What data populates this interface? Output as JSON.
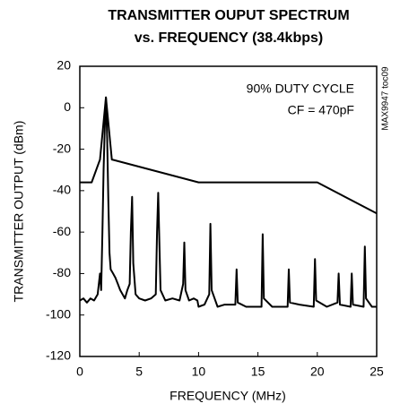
{
  "chart_data": {
    "type": "line",
    "title": [
      "TRANSMITTER OUPUT SPECTRUM",
      "vs. FREQUENCY (38.4kbps)"
    ],
    "x_label": "FREQUENCY (MHz)",
    "y_label": "TRANSMITTER OUTPUT (dBm)",
    "annotations": [
      "90% DUTY CYCLE",
      "CF = 470pF",
      "MAX9947 toc09"
    ],
    "xlim": [
      0,
      25
    ],
    "ylim": [
      -120,
      20
    ],
    "xticks": [
      0,
      5,
      10,
      15,
      20,
      25
    ],
    "yticks": [
      20,
      0,
      -20,
      -40,
      -60,
      -80,
      -100,
      -120
    ],
    "grid": false,
    "series": [
      {
        "color": "#000000",
        "x": [
          0,
          1,
          1.7,
          2.2,
          2.7,
          10,
          20,
          25
        ],
        "values": [
          -36,
          -36,
          -25,
          5,
          -25,
          -36,
          -36,
          -51
        ]
      },
      {
        "color": "#000000",
        "x": [
          0,
          0.3,
          0.6,
          0.9,
          1.2,
          1.5,
          1.7,
          1.8,
          1.9,
          2.0,
          2.1,
          2.2,
          2.3,
          2.4,
          2.5,
          2.6,
          2.8,
          3.0,
          3.2,
          3.4,
          3.6,
          3.8,
          4.0,
          4.2,
          4.3,
          4.4,
          4.5,
          4.7,
          5.0,
          5.5,
          6.0,
          6.4,
          6.5,
          6.6,
          6.7,
          6.8,
          7.2,
          7.8,
          8.4,
          8.7,
          8.8,
          8.9,
          9.2,
          9.6,
          9.9,
          10.0,
          10.5,
          10.9,
          11.0,
          11.1,
          11.6,
          12.2,
          13.1,
          13.2,
          13.3,
          14,
          15.3,
          15.4,
          15.5,
          16.2,
          17.5,
          17.6,
          17.7,
          18.5,
          19.7,
          19.8,
          19.9,
          20.8,
          21.7,
          21.8,
          21.9,
          22.8,
          22.9,
          23.0,
          23.9,
          24.0,
          24.1,
          24.6,
          25
        ],
        "values": [
          -93,
          -92,
          -94,
          -92,
          -93,
          -90,
          -80,
          -88,
          -60,
          -30,
          -10,
          5,
          -15,
          -45,
          -70,
          -78,
          -80,
          -82,
          -85,
          -88,
          -90,
          -92,
          -88,
          -85,
          -60,
          -43,
          -75,
          -90,
          -92,
          -93,
          -92,
          -90,
          -60,
          -41,
          -65,
          -88,
          -93,
          -92,
          -93,
          -85,
          -65,
          -88,
          -93,
          -92,
          -93,
          -96,
          -95,
          -90,
          -56,
          -88,
          -96,
          -95,
          -95,
          -78,
          -94,
          -96,
          -96,
          -61,
          -92,
          -96,
          -96,
          -78,
          -94,
          -95,
          -96,
          -73,
          -93,
          -96,
          -94,
          -80,
          -95,
          -96,
          -80,
          -95,
          -96,
          -67,
          -92,
          -96,
          -96
        ]
      }
    ]
  }
}
